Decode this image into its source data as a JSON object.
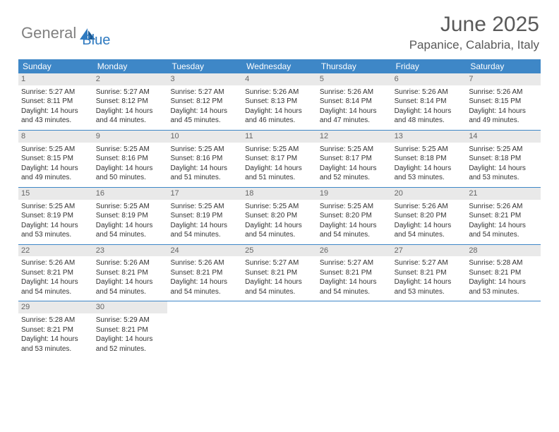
{
  "brand": {
    "part1": "General",
    "part2": "Blue"
  },
  "title": "June 2025",
  "location": "Papanice, Calabria, Italy",
  "colors": {
    "header_bg": "#3e87c7",
    "daynum_bg": "#e9e9e9",
    "rule": "#3e87c7",
    "text": "#333333",
    "title_text": "#595959"
  },
  "weekdays": [
    "Sunday",
    "Monday",
    "Tuesday",
    "Wednesday",
    "Thursday",
    "Friday",
    "Saturday"
  ],
  "weeks": [
    [
      {
        "n": "1",
        "sr": "5:27 AM",
        "ss": "8:11 PM",
        "dl": "14 hours and 43 minutes."
      },
      {
        "n": "2",
        "sr": "5:27 AM",
        "ss": "8:12 PM",
        "dl": "14 hours and 44 minutes."
      },
      {
        "n": "3",
        "sr": "5:27 AM",
        "ss": "8:12 PM",
        "dl": "14 hours and 45 minutes."
      },
      {
        "n": "4",
        "sr": "5:26 AM",
        "ss": "8:13 PM",
        "dl": "14 hours and 46 minutes."
      },
      {
        "n": "5",
        "sr": "5:26 AM",
        "ss": "8:14 PM",
        "dl": "14 hours and 47 minutes."
      },
      {
        "n": "6",
        "sr": "5:26 AM",
        "ss": "8:14 PM",
        "dl": "14 hours and 48 minutes."
      },
      {
        "n": "7",
        "sr": "5:26 AM",
        "ss": "8:15 PM",
        "dl": "14 hours and 49 minutes."
      }
    ],
    [
      {
        "n": "8",
        "sr": "5:25 AM",
        "ss": "8:15 PM",
        "dl": "14 hours and 49 minutes."
      },
      {
        "n": "9",
        "sr": "5:25 AM",
        "ss": "8:16 PM",
        "dl": "14 hours and 50 minutes."
      },
      {
        "n": "10",
        "sr": "5:25 AM",
        "ss": "8:16 PM",
        "dl": "14 hours and 51 minutes."
      },
      {
        "n": "11",
        "sr": "5:25 AM",
        "ss": "8:17 PM",
        "dl": "14 hours and 51 minutes."
      },
      {
        "n": "12",
        "sr": "5:25 AM",
        "ss": "8:17 PM",
        "dl": "14 hours and 52 minutes."
      },
      {
        "n": "13",
        "sr": "5:25 AM",
        "ss": "8:18 PM",
        "dl": "14 hours and 53 minutes."
      },
      {
        "n": "14",
        "sr": "5:25 AM",
        "ss": "8:18 PM",
        "dl": "14 hours and 53 minutes."
      }
    ],
    [
      {
        "n": "15",
        "sr": "5:25 AM",
        "ss": "8:19 PM",
        "dl": "14 hours and 53 minutes."
      },
      {
        "n": "16",
        "sr": "5:25 AM",
        "ss": "8:19 PM",
        "dl": "14 hours and 54 minutes."
      },
      {
        "n": "17",
        "sr": "5:25 AM",
        "ss": "8:19 PM",
        "dl": "14 hours and 54 minutes."
      },
      {
        "n": "18",
        "sr": "5:25 AM",
        "ss": "8:20 PM",
        "dl": "14 hours and 54 minutes."
      },
      {
        "n": "19",
        "sr": "5:25 AM",
        "ss": "8:20 PM",
        "dl": "14 hours and 54 minutes."
      },
      {
        "n": "20",
        "sr": "5:26 AM",
        "ss": "8:20 PM",
        "dl": "14 hours and 54 minutes."
      },
      {
        "n": "21",
        "sr": "5:26 AM",
        "ss": "8:21 PM",
        "dl": "14 hours and 54 minutes."
      }
    ],
    [
      {
        "n": "22",
        "sr": "5:26 AM",
        "ss": "8:21 PM",
        "dl": "14 hours and 54 minutes."
      },
      {
        "n": "23",
        "sr": "5:26 AM",
        "ss": "8:21 PM",
        "dl": "14 hours and 54 minutes."
      },
      {
        "n": "24",
        "sr": "5:26 AM",
        "ss": "8:21 PM",
        "dl": "14 hours and 54 minutes."
      },
      {
        "n": "25",
        "sr": "5:27 AM",
        "ss": "8:21 PM",
        "dl": "14 hours and 54 minutes."
      },
      {
        "n": "26",
        "sr": "5:27 AM",
        "ss": "8:21 PM",
        "dl": "14 hours and 54 minutes."
      },
      {
        "n": "27",
        "sr": "5:27 AM",
        "ss": "8:21 PM",
        "dl": "14 hours and 53 minutes."
      },
      {
        "n": "28",
        "sr": "5:28 AM",
        "ss": "8:21 PM",
        "dl": "14 hours and 53 minutes."
      }
    ],
    [
      {
        "n": "29",
        "sr": "5:28 AM",
        "ss": "8:21 PM",
        "dl": "14 hours and 53 minutes."
      },
      {
        "n": "30",
        "sr": "5:29 AM",
        "ss": "8:21 PM",
        "dl": "14 hours and 52 minutes."
      },
      null,
      null,
      null,
      null,
      null
    ]
  ],
  "labels": {
    "sunrise": "Sunrise: ",
    "sunset": "Sunset: ",
    "daylight": "Daylight: "
  }
}
